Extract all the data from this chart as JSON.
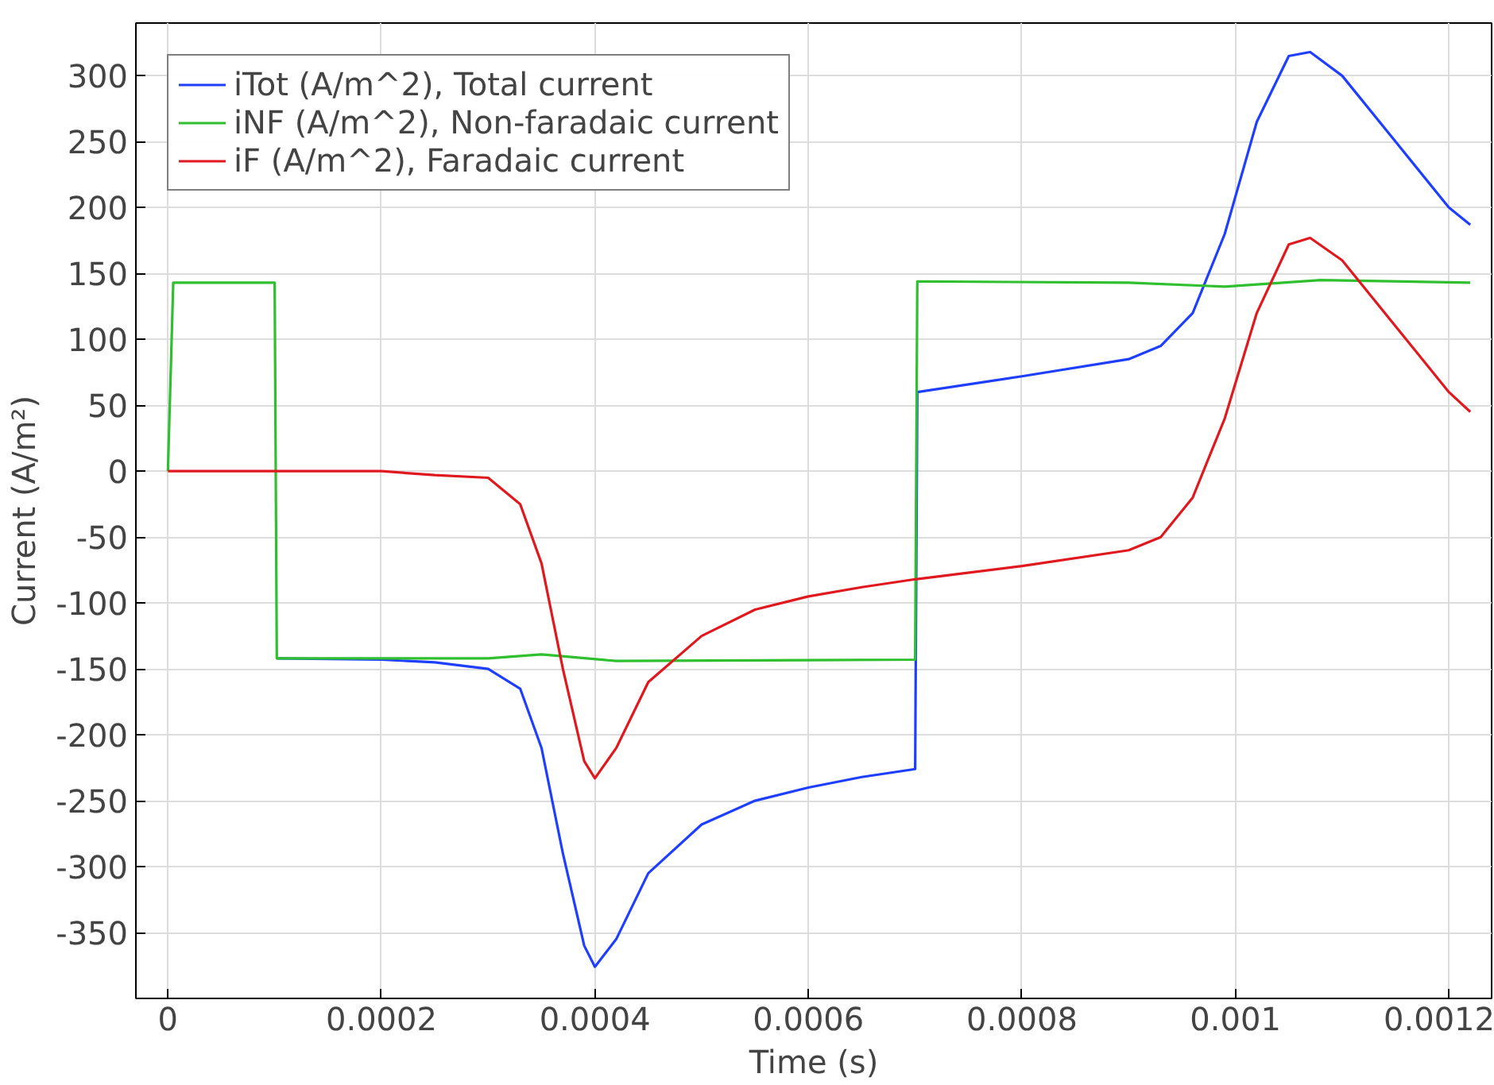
{
  "chart_data": {
    "type": "line",
    "xlabel": "Time (s)",
    "ylabel": "Current (A/m²)",
    "xlim": [
      -3e-05,
      0.00124
    ],
    "ylim": [
      -400,
      340
    ],
    "xticks": [
      0,
      0.0002,
      0.0004,
      0.0006,
      0.0008,
      0.001,
      0.0012
    ],
    "yticks": [
      -350,
      -300,
      -250,
      -200,
      -150,
      -100,
      -50,
      0,
      50,
      100,
      150,
      200,
      250,
      300
    ],
    "grid": true,
    "legend": "top left",
    "marker": "none",
    "line_style": "solid",
    "series": [
      {
        "name": "iTot (A/m^2), Total current",
        "color": "#1f3fff",
        "x": [
          0.000102,
          0.0002,
          0.00025,
          0.0003,
          0.00033,
          0.00035,
          0.00037,
          0.00039,
          0.0004,
          0.00042,
          0.00045,
          0.0005,
          0.00055,
          0.0006,
          0.00065,
          0.0007,
          0.000702,
          0.0008,
          0.0009,
          0.00093,
          0.00096,
          0.00099,
          0.00102,
          0.00105,
          0.00107,
          0.0011,
          0.00115,
          0.0012,
          0.00122
        ],
        "values": [
          -142,
          -143,
          -145,
          -150,
          -165,
          -210,
          -290,
          -360,
          -376,
          -355,
          -305,
          -268,
          -250,
          -240,
          -232,
          -226,
          60,
          72,
          85,
          95,
          120,
          180,
          265,
          315,
          318,
          300,
          250,
          200,
          187
        ]
      },
      {
        "name": "iNF (A/m^2), Non-faradaic current",
        "color": "#2fbf2f",
        "x": [
          0,
          5e-06,
          0.0001,
          0.000102,
          0.0003,
          0.00035,
          0.00042,
          0.0007,
          0.000702,
          0.0009,
          0.00099,
          0.00108,
          0.00122
        ],
        "values": [
          0,
          143,
          143,
          -142,
          -142,
          -139,
          -144,
          -143,
          144,
          143,
          140,
          145,
          143
        ]
      },
      {
        "name": "iF (A/m^2), Faradaic current",
        "color": "#e0191f",
        "x": [
          0,
          0.0002,
          0.00025,
          0.0003,
          0.00033,
          0.00035,
          0.00037,
          0.00039,
          0.0004,
          0.00042,
          0.00045,
          0.0005,
          0.00055,
          0.0006,
          0.00065,
          0.0007,
          0.0008,
          0.0009,
          0.00093,
          0.00096,
          0.00099,
          0.00102,
          0.00105,
          0.00107,
          0.0011,
          0.00115,
          0.0012,
          0.00122
        ],
        "values": [
          0,
          0,
          -3,
          -5,
          -25,
          -70,
          -150,
          -220,
          -233,
          -210,
          -160,
          -125,
          -105,
          -95,
          -88,
          -82,
          -72,
          -60,
          -50,
          -20,
          40,
          120,
          172,
          177,
          160,
          110,
          60,
          45
        ]
      }
    ]
  }
}
